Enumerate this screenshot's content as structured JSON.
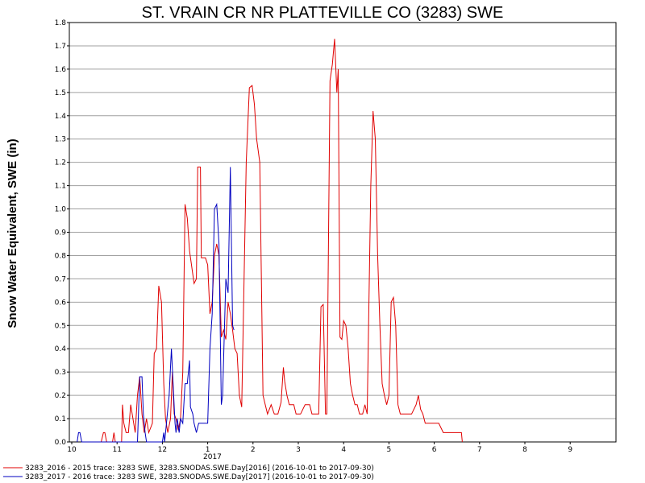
{
  "chart_data": {
    "type": "line",
    "title": "ST. VRAIN CR NR PLATTEVILLE CO (3283) SWE",
    "ylabel": "Snow Water Equivalent, SWE (in)",
    "xlabel": "",
    "year_label": "2017",
    "ylim": [
      0,
      1.8
    ],
    "y_ticks": [
      "0.0",
      "0.1",
      "0.2",
      "0.3",
      "0.4",
      "0.5",
      "0.6",
      "0.7",
      "0.8",
      "0.9",
      "1.0",
      "1.1",
      "1.2",
      "1.3",
      "1.4",
      "1.5",
      "1.6",
      "1.7",
      "1.8"
    ],
    "x_ticks": [
      "10",
      "11",
      "12",
      "1",
      "2",
      "3",
      "4",
      "5",
      "6",
      "7",
      "8",
      "9"
    ],
    "grid": true,
    "legend_position": "bottom-left",
    "series": [
      {
        "name": "3283_2016 - 2015 trace: 3283 SWE, 3283.SNODAS.SWE.Day[2016] (2016-10-01 to 2017-09-30)",
        "color": "#e00000",
        "points": [
          [
            10.65,
            0
          ],
          [
            10.7,
            0.04
          ],
          [
            10.73,
            0.04
          ],
          [
            10.77,
            0
          ],
          [
            10.9,
            0
          ],
          [
            10.93,
            0.04
          ],
          [
            10.96,
            0
          ],
          [
            11.1,
            0
          ],
          [
            11.12,
            0.16
          ],
          [
            11.15,
            0.08
          ],
          [
            11.2,
            0.04
          ],
          [
            11.25,
            0.04
          ],
          [
            11.3,
            0.16
          ],
          [
            11.35,
            0.1
          ],
          [
            11.4,
            0.04
          ],
          [
            11.45,
            0.2
          ],
          [
            11.5,
            0.28
          ],
          [
            11.55,
            0.12
          ],
          [
            11.6,
            0.04
          ],
          [
            11.65,
            0.1
          ],
          [
            11.7,
            0.04
          ],
          [
            11.78,
            0.08
          ],
          [
            11.82,
            0.38
          ],
          [
            11.87,
            0.4
          ],
          [
            11.92,
            0.67
          ],
          [
            11.98,
            0.6
          ],
          [
            12.03,
            0.25
          ],
          [
            12.07,
            0.1
          ],
          [
            12.12,
            0.04
          ],
          [
            12.18,
            0.1
          ],
          [
            12.22,
            0.3
          ],
          [
            12.26,
            0.12
          ],
          [
            12.3,
            0.1
          ],
          [
            12.35,
            0.05
          ],
          [
            12.4,
            0.1
          ],
          [
            12.45,
            0.3
          ],
          [
            12.5,
            1.02
          ],
          [
            12.55,
            0.96
          ],
          [
            12.6,
            0.82
          ],
          [
            12.67,
            0.72
          ],
          [
            12.7,
            0.68
          ],
          [
            12.75,
            0.7
          ],
          [
            12.78,
            1.18
          ],
          [
            12.84,
            1.18
          ],
          [
            12.86,
            0.79
          ],
          [
            12.95,
            0.79
          ],
          [
            13.0,
            0.76
          ],
          [
            13.05,
            0.55
          ],
          [
            13.1,
            0.6
          ],
          [
            13.15,
            0.8
          ],
          [
            13.2,
            0.85
          ],
          [
            13.25,
            0.8
          ],
          [
            13.3,
            0.45
          ],
          [
            13.35,
            0.48
          ],
          [
            13.4,
            0.44
          ],
          [
            13.45,
            0.6
          ],
          [
            13.5,
            0.55
          ],
          [
            13.55,
            0.48
          ],
          [
            13.6,
            0.4
          ],
          [
            13.65,
            0.38
          ],
          [
            13.7,
            0.2
          ],
          [
            13.75,
            0.15
          ],
          [
            13.85,
            1.2
          ],
          [
            13.92,
            1.52
          ],
          [
            13.98,
            1.53
          ],
          [
            14.03,
            1.45
          ],
          [
            14.08,
            1.3
          ],
          [
            14.15,
            1.2
          ],
          [
            14.22,
            0.2
          ],
          [
            14.27,
            0.16
          ],
          [
            14.32,
            0.12
          ],
          [
            14.4,
            0.16
          ],
          [
            14.47,
            0.12
          ],
          [
            14.55,
            0.12
          ],
          [
            14.62,
            0.17
          ],
          [
            14.67,
            0.32
          ],
          [
            14.7,
            0.26
          ],
          [
            14.75,
            0.2
          ],
          [
            14.8,
            0.16
          ],
          [
            14.9,
            0.16
          ],
          [
            14.95,
            0.12
          ],
          [
            15.05,
            0.12
          ],
          [
            15.15,
            0.16
          ],
          [
            15.25,
            0.16
          ],
          [
            15.3,
            0.12
          ],
          [
            15.45,
            0.12
          ],
          [
            15.5,
            0.58
          ],
          [
            15.55,
            0.59
          ],
          [
            15.6,
            0.12
          ],
          [
            15.63,
            0.12
          ],
          [
            15.7,
            1.55
          ],
          [
            15.75,
            1.62
          ],
          [
            15.8,
            1.73
          ],
          [
            15.85,
            1.5
          ],
          [
            15.88,
            1.6
          ],
          [
            15.92,
            0.45
          ],
          [
            15.96,
            0.44
          ],
          [
            16.0,
            0.52
          ],
          [
            16.05,
            0.5
          ],
          [
            16.1,
            0.4
          ],
          [
            16.15,
            0.25
          ],
          [
            16.2,
            0.2
          ],
          [
            16.25,
            0.16
          ],
          [
            16.3,
            0.16
          ],
          [
            16.35,
            0.12
          ],
          [
            16.42,
            0.12
          ],
          [
            16.47,
            0.16
          ],
          [
            16.52,
            0.12
          ],
          [
            16.6,
            1.1
          ],
          [
            16.65,
            1.42
          ],
          [
            16.7,
            1.3
          ],
          [
            16.75,
            0.8
          ],
          [
            16.8,
            0.5
          ],
          [
            16.85,
            0.25
          ],
          [
            16.9,
            0.2
          ],
          [
            16.95,
            0.16
          ],
          [
            17.0,
            0.2
          ],
          [
            17.05,
            0.6
          ],
          [
            17.1,
            0.62
          ],
          [
            17.15,
            0.5
          ],
          [
            17.2,
            0.16
          ],
          [
            17.25,
            0.12
          ],
          [
            17.4,
            0.12
          ],
          [
            17.5,
            0.12
          ],
          [
            17.6,
            0.16
          ],
          [
            17.65,
            0.2
          ],
          [
            17.7,
            0.14
          ],
          [
            17.75,
            0.12
          ],
          [
            17.8,
            0.08
          ],
          [
            18.0,
            0.08
          ],
          [
            18.1,
            0.08
          ],
          [
            18.2,
            0.04
          ],
          [
            18.6,
            0.04
          ],
          [
            18.62,
            0
          ]
        ]
      },
      {
        "name": "3283_2017 - 2016 trace: 3283 SWE, 3283.SNODAS.SWE.Day[2017] (2016-10-01 to 2017-09-30)",
        "color": "#0000c0",
        "points": [
          [
            10.12,
            0
          ],
          [
            10.15,
            0.04
          ],
          [
            10.18,
            0.04
          ],
          [
            10.22,
            0
          ],
          [
            11.45,
            0
          ],
          [
            11.5,
            0.28
          ],
          [
            11.55,
            0.28
          ],
          [
            11.58,
            0.12
          ],
          [
            11.62,
            0.04
          ],
          [
            11.65,
            0
          ],
          [
            12.0,
            0
          ],
          [
            12.03,
            0.04
          ],
          [
            12.05,
            0
          ],
          [
            12.1,
            0.1
          ],
          [
            12.15,
            0.2
          ],
          [
            12.2,
            0.4
          ],
          [
            12.25,
            0.2
          ],
          [
            12.28,
            0.08
          ],
          [
            12.3,
            0.04
          ],
          [
            12.33,
            0.1
          ],
          [
            12.37,
            0.04
          ],
          [
            12.4,
            0.1
          ],
          [
            12.45,
            0.08
          ],
          [
            12.5,
            0.25
          ],
          [
            12.55,
            0.25
          ],
          [
            12.6,
            0.35
          ],
          [
            12.62,
            0.15
          ],
          [
            12.67,
            0.12
          ],
          [
            12.7,
            0.08
          ],
          [
            12.75,
            0.04
          ],
          [
            12.8,
            0.08
          ],
          [
            12.85,
            0.08
          ],
          [
            13.0,
            0.08
          ],
          [
            13.05,
            0.4
          ],
          [
            13.1,
            0.55
          ],
          [
            13.15,
            1.0
          ],
          [
            13.2,
            1.02
          ],
          [
            13.25,
            0.85
          ],
          [
            13.3,
            0.16
          ],
          [
            13.33,
            0.2
          ],
          [
            13.4,
            0.7
          ],
          [
            13.45,
            0.64
          ],
          [
            13.5,
            1.18
          ],
          [
            13.55,
            0.5
          ],
          [
            13.58,
            0.48
          ]
        ]
      }
    ]
  }
}
